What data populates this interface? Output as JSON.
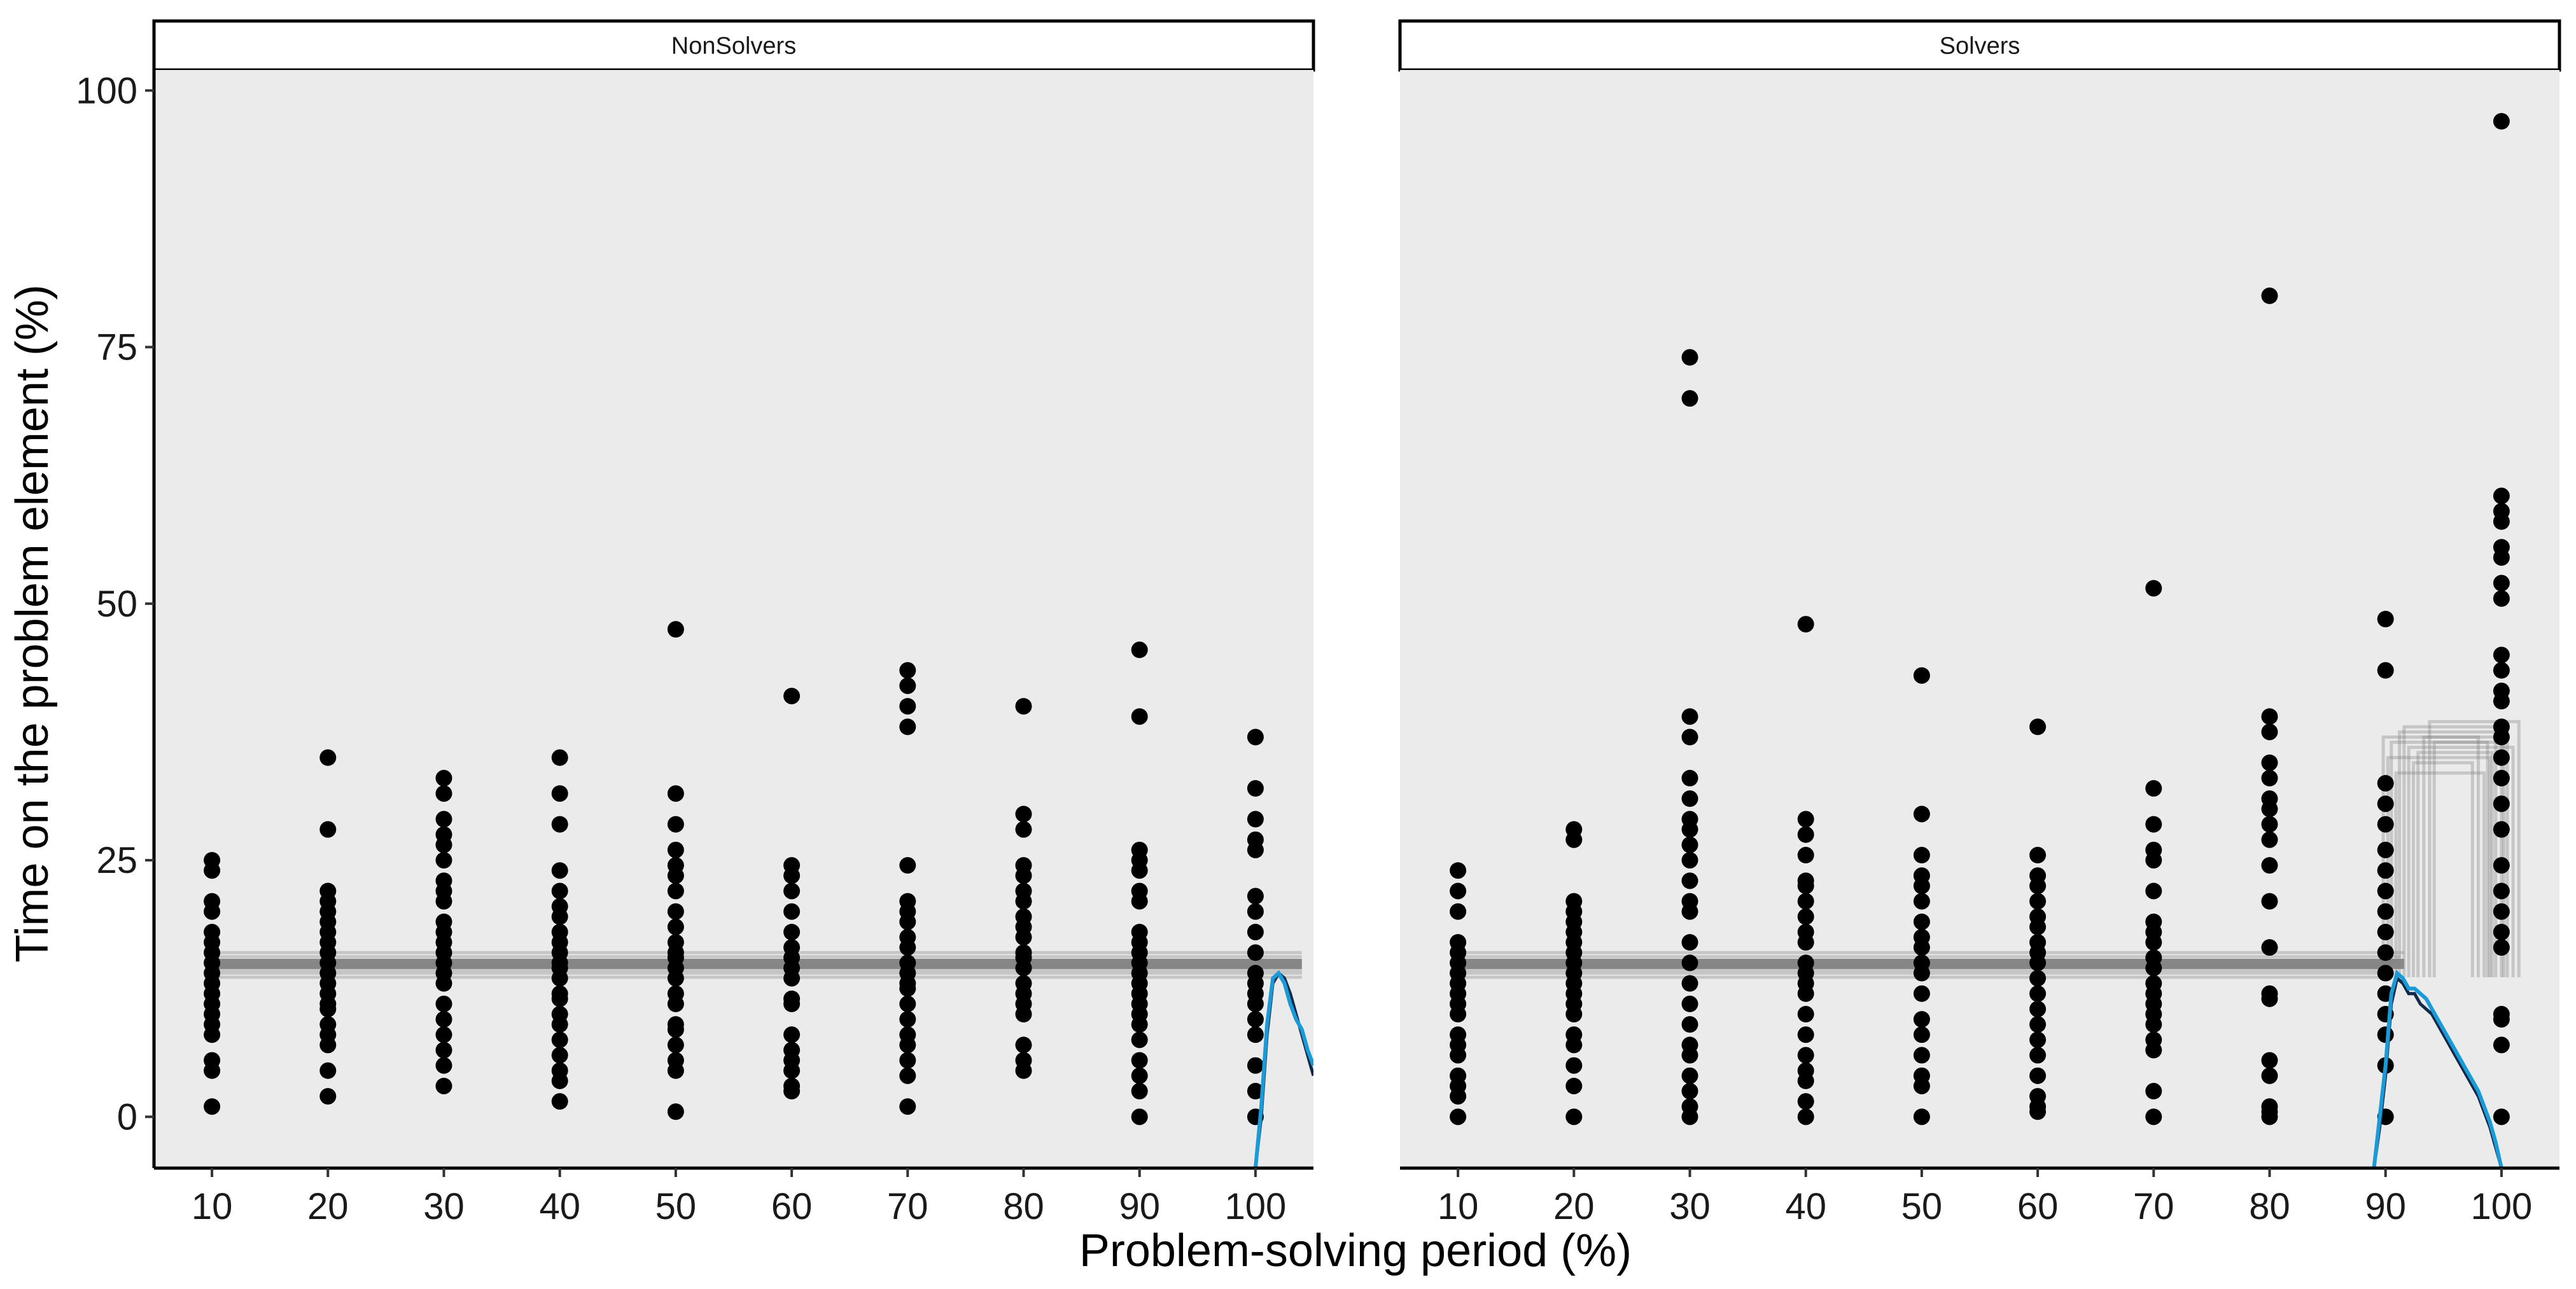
{
  "chart_data": {
    "type": "scatter",
    "xlabel": "Problem-solving period (%)",
    "ylabel": "Time on the problem element (%)",
    "xlim": [
      5,
      105
    ],
    "ylim": [
      -5,
      102
    ],
    "x_ticks": [
      10,
      20,
      30,
      40,
      50,
      60,
      70,
      80,
      90,
      100
    ],
    "y_ticks": [
      0,
      25,
      50,
      75,
      100
    ],
    "colors": {
      "points": "#000000",
      "panel": "#ebebeb",
      "band": "#808080",
      "curve_dark": "#13294b",
      "curve_blue": "#1a9bd7"
    },
    "facets": [
      {
        "name": "NonSolvers",
        "points": {
          "10": [
            1,
            4.5,
            5.5,
            8,
            9,
            10,
            11,
            12,
            13,
            14,
            15,
            16,
            17,
            18,
            20,
            21,
            24,
            25
          ],
          "20": [
            2,
            4.5,
            7,
            8,
            9,
            10.5,
            11,
            12,
            13,
            14,
            15,
            16,
            17,
            18,
            19,
            20,
            21,
            22,
            28,
            35
          ],
          "30": [
            3,
            5,
            6.5,
            8,
            9.5,
            11,
            13,
            14,
            15,
            16,
            17,
            18,
            19,
            21,
            22,
            23,
            25,
            26.5,
            27.5,
            29,
            31.5,
            33
          ],
          "40": [
            1.5,
            3.5,
            4.5,
            6,
            7.5,
            9,
            10,
            11.5,
            12,
            13.5,
            14.5,
            15,
            16,
            17,
            18,
            19.5,
            20.5,
            22,
            24,
            28.5,
            31.5,
            35
          ],
          "50": [
            0.5,
            4.5,
            5.5,
            7,
            8.5,
            9,
            11,
            12,
            13.5,
            14.5,
            15.5,
            16,
            17,
            18.5,
            20,
            22,
            23.5,
            24.5,
            26,
            28.5,
            31.5,
            47.5
          ],
          "60": [
            2.5,
            3,
            4.5,
            5.5,
            6.5,
            8,
            11,
            11.5,
            13.5,
            14.5,
            15.5,
            16.5,
            18,
            20,
            22,
            23.5,
            24.5,
            41
          ],
          "70": [
            1,
            4,
            5.5,
            7,
            8,
            9.5,
            11,
            12.5,
            13,
            14,
            15,
            16.5,
            17.5,
            19,
            20,
            21,
            24.5,
            38,
            40,
            42,
            43.5
          ],
          "80": [
            4.5,
            5.5,
            7,
            10,
            11,
            12,
            13,
            14.5,
            15.5,
            16,
            17.5,
            18.5,
            19.5,
            21,
            22,
            23.5,
            24.5,
            28,
            29.5,
            40
          ],
          "90": [
            0,
            2.5,
            4,
            5.5,
            7.5,
            9,
            10,
            11,
            12,
            13,
            14,
            15,
            16,
            17,
            18,
            21,
            22,
            24,
            25,
            26,
            39,
            45.5
          ],
          "100": [
            0,
            2.5,
            5,
            8,
            9.5,
            11,
            12,
            13,
            14,
            16,
            18,
            20,
            21.5,
            26,
            27,
            29,
            32,
            37
          ]
        },
        "band": {
          "x_from": 10,
          "x_to": 104,
          "y_values": [
            13.6,
            14,
            14.3,
            14.6,
            14.9,
            15.2,
            15.6,
            16
          ]
        },
        "density_curves": [
          {
            "name": "dark",
            "x": [
              100,
              100.5,
              101,
              101.5,
              102,
              102.5,
              103,
              103.5,
              104,
              104.5,
              105
            ],
            "y": [
              -5,
              0,
              8,
              13,
              14,
              13.5,
              12,
              10,
              8,
              6,
              4
            ]
          },
          {
            "name": "blue",
            "x": [
              100,
              100.5,
              101,
              101.5,
              102,
              102.5,
              103,
              103.5,
              104,
              104.5,
              105
            ],
            "y": [
              -5,
              1,
              9,
              13.5,
              14,
              13,
              11,
              9.5,
              8.5,
              6.5,
              5
            ]
          }
        ]
      },
      {
        "name": "Solvers",
        "points": {
          "10": [
            0,
            2,
            3,
            4,
            6,
            7,
            8,
            10,
            11,
            12,
            13,
            14,
            15,
            16,
            17,
            20,
            22,
            24
          ],
          "20": [
            0,
            3,
            5,
            7,
            8,
            10,
            11,
            12,
            13,
            14,
            15,
            16,
            17,
            18,
            19,
            20,
            21,
            27,
            28
          ],
          "30": [
            0,
            1,
            2.5,
            4,
            6,
            7,
            9,
            11,
            13,
            15,
            17,
            20,
            21,
            23,
            25,
            26.5,
            28,
            29,
            31,
            33,
            37,
            39,
            70,
            74
          ],
          "40": [
            0,
            1.5,
            3.5,
            4.5,
            6,
            8,
            10,
            12,
            13,
            14,
            15,
            17,
            18,
            19.5,
            21,
            22.5,
            23,
            25.5,
            27.5,
            29,
            48
          ],
          "50": [
            0,
            3,
            4,
            6,
            8,
            9.5,
            12,
            14,
            15,
            16.5,
            17.5,
            19,
            21,
            22.5,
            23.5,
            25.5,
            29.5,
            43
          ],
          "60": [
            0.5,
            1,
            2,
            4,
            6,
            7.5,
            9,
            10.5,
            12,
            13.5,
            15,
            16,
            17,
            18.5,
            19.5,
            21,
            22.5,
            23.5,
            25.5,
            38
          ],
          "70": [
            0,
            2.5,
            6.5,
            7.5,
            9,
            10,
            11,
            12,
            13,
            14.5,
            15.5,
            17,
            18,
            19,
            22,
            25,
            26,
            28.5,
            32,
            51.5
          ],
          "80": [
            0,
            0.5,
            1,
            4,
            5.5,
            11.5,
            12,
            16.5,
            21,
            24.5,
            27,
            28.5,
            30,
            31,
            33,
            34.5,
            37.5,
            39,
            80
          ],
          "90": [
            0,
            5,
            8,
            10,
            12,
            14,
            16,
            18,
            20,
            22,
            24,
            26,
            28.5,
            30.5,
            32.5,
            43.5,
            48.5
          ],
          "100": [
            0,
            7,
            9.5,
            10,
            16.5,
            18,
            20,
            22,
            24.5,
            28,
            30.5,
            33,
            35,
            37,
            38,
            40.5,
            41.5,
            43.5,
            45,
            50.5,
            52,
            54.5,
            55.5,
            58,
            59,
            60.5,
            97
          ]
        },
        "band": {
          "x_from": 10,
          "x_to_values": [
            89.5,
            89.8,
            90.1,
            90.4,
            90.7,
            91,
            91.3,
            91.6
          ],
          "y_values": [
            13.6,
            14,
            14.3,
            14.6,
            14.9,
            15.2,
            15.6,
            16
          ]
        },
        "jump_boxes": [
          {
            "x1": 89.8,
            "x2": 98.0,
            "y_top": 37.0
          },
          {
            "x1": 90.2,
            "x2": 99.0,
            "y_top": 35.0
          },
          {
            "x1": 90.5,
            "x2": 100.0,
            "y_top": 36.5
          },
          {
            "x1": 90.9,
            "x2": 98.5,
            "y_top": 33.5
          },
          {
            "x1": 91.2,
            "x2": 99.5,
            "y_top": 37.5
          },
          {
            "x1": 91.6,
            "x2": 100.5,
            "y_top": 38.0
          },
          {
            "x1": 92.0,
            "x2": 101.0,
            "y_top": 36.0
          },
          {
            "x1": 92.4,
            "x2": 97.5,
            "y_top": 34.5
          },
          {
            "x1": 92.8,
            "x2": 99.2,
            "y_top": 35.5
          },
          {
            "x1": 93.3,
            "x2": 100.2,
            "y_top": 37.0
          },
          {
            "x1": 93.8,
            "x2": 101.5,
            "y_top": 38.5
          },
          {
            "x1": 94.2,
            "x2": 98.8,
            "y_top": 36.5
          }
        ],
        "density_curves": [
          {
            "name": "dark",
            "x": [
              89,
              89.5,
              90,
              90.5,
              91,
              91.5,
              92,
              92.5,
              93,
              93.5,
              94,
              94.5,
              95,
              95.5,
              96,
              96.5,
              97,
              97.5,
              98,
              98.5,
              99,
              99.5,
              100
            ],
            "y": [
              -5,
              -1,
              4,
              11,
              13.5,
              13,
              12,
              12,
              11,
              10.5,
              10,
              9,
              8,
              7,
              6,
              5,
              4,
              3,
              2,
              0.5,
              -1,
              -3,
              -5
            ]
          },
          {
            "name": "blue",
            "x": [
              89,
              89.5,
              90,
              90.5,
              91,
              91.5,
              92,
              92.5,
              93,
              93.5,
              94,
              94.5,
              95,
              95.5,
              96,
              96.5,
              97,
              97.5,
              98,
              98.5,
              99,
              99.5,
              100
            ],
            "y": [
              -5,
              0,
              5,
              12,
              14,
              13.5,
              12.5,
              12.5,
              12,
              11.5,
              10.5,
              9.5,
              8.5,
              7.5,
              6.5,
              5.5,
              4.5,
              3.5,
              2.5,
              1,
              -0.5,
              -2.5,
              -5
            ]
          }
        ]
      }
    ]
  }
}
